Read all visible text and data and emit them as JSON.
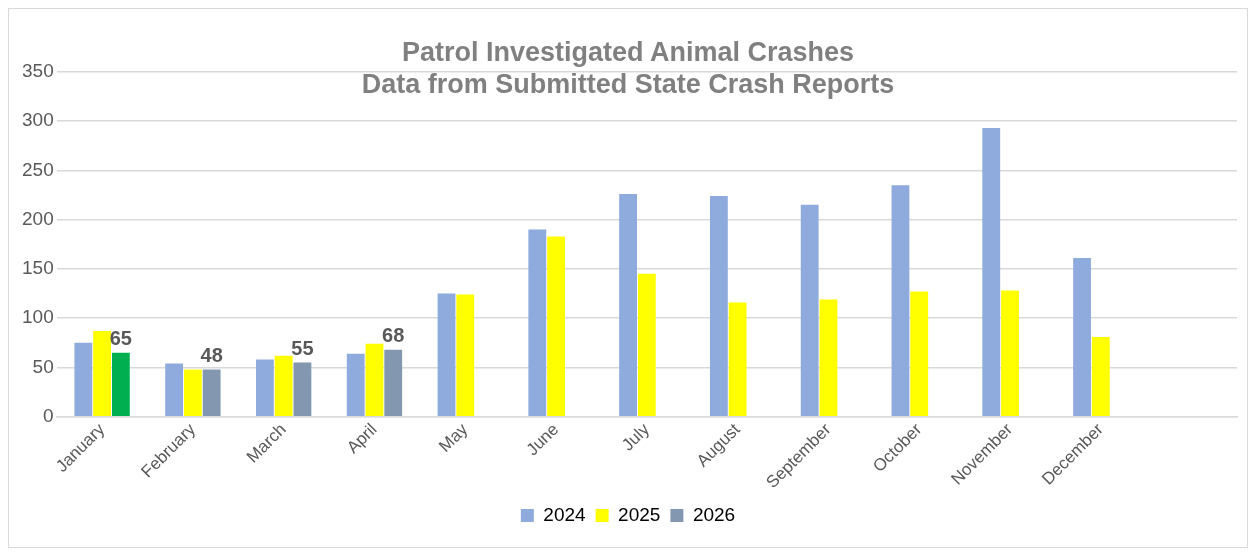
{
  "chart_data": {
    "type": "bar",
    "title": "Patrol Investigated Animal Crashes",
    "subtitle": "Data from Submitted State Crash Reports",
    "categories": [
      "January",
      "February",
      "March",
      "April",
      "May",
      "June",
      "July",
      "August",
      "September",
      "October",
      "November",
      "December",
      null
    ],
    "series": [
      {
        "name": "2024",
        "color": "#8faadc",
        "values": [
          75,
          54,
          58,
          64,
          125,
          190,
          226,
          224,
          215,
          235,
          293,
          161,
          null
        ]
      },
      {
        "name": "2025",
        "color": "#ffff00",
        "values": [
          87,
          48,
          62,
          74,
          124,
          183,
          145,
          116,
          119,
          127,
          128,
          81,
          null
        ]
      },
      {
        "name": "2026",
        "color": "#8497b0",
        "colors": [
          "#00b050",
          "#8497b0",
          "#8497b0",
          "#8497b0",
          null,
          null,
          null,
          null,
          null,
          null,
          null,
          null,
          null
        ],
        "values": [
          65,
          48,
          55,
          68,
          null,
          null,
          null,
          null,
          null,
          null,
          null,
          null,
          null
        ],
        "value_labels": [
          "65",
          "48",
          "55",
          "68",
          null,
          null,
          null,
          null,
          null,
          null,
          null,
          null,
          null
        ]
      }
    ],
    "ylim": [
      0,
      350
    ],
    "yticks": [
      0,
      50,
      100,
      150,
      200,
      250,
      300,
      350
    ],
    "grid": "y",
    "legend": "bottom"
  }
}
